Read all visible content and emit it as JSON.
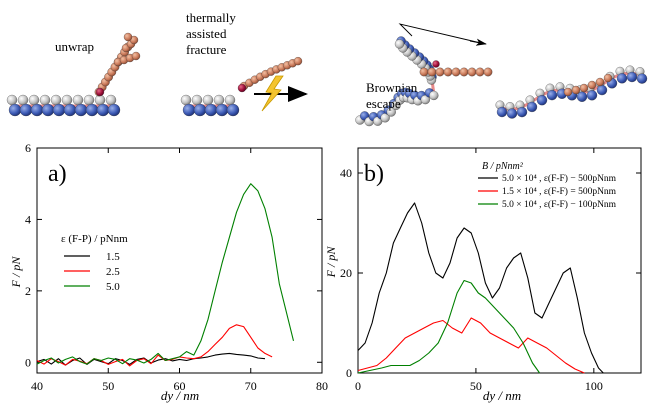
{
  "illustrations": {
    "labels": [
      "unwrap",
      "thermally",
      "assisted",
      "fracture",
      "Brownian",
      "escape"
    ]
  },
  "chart_data": [
    {
      "type": "line",
      "panel_label": "a)",
      "xlabel": "dy / nm",
      "ylabel": "F / pN",
      "xlim": [
        40,
        80
      ],
      "ylim": [
        -0.3,
        6
      ],
      "xticks": [
        40,
        50,
        60,
        70,
        80
      ],
      "yticks": [
        0,
        2,
        4,
        6
      ],
      "legend_title": "ε (F-P) / pNnm",
      "legend_position": "center-left",
      "series": [
        {
          "name": "1.5",
          "color": "#000000",
          "x": [
            40,
            41,
            42,
            43,
            44,
            45,
            46,
            47,
            48,
            49,
            50,
            51,
            52,
            53,
            54,
            55,
            56,
            57,
            58,
            59,
            60,
            61,
            62,
            63,
            64,
            65,
            66,
            67,
            68,
            69,
            70,
            71,
            72
          ],
          "y": [
            0.02,
            0.08,
            -0.05,
            0.1,
            -0.08,
            0.05,
            0.12,
            -0.06,
            0.08,
            0.02,
            -0.04,
            0.1,
            0.05,
            -0.06,
            0.08,
            0.12,
            -0.02,
            0.06,
            0.1,
            0.04,
            0.08,
            0.05,
            0.1,
            0.12,
            0.15,
            0.2,
            0.23,
            0.25,
            0.22,
            0.2,
            0.18,
            0.12,
            0.1
          ]
        },
        {
          "name": "2.5",
          "color": "#ff0000",
          "x": [
            40,
            41,
            42,
            43,
            44,
            45,
            46,
            47,
            48,
            49,
            50,
            51,
            52,
            53,
            54,
            55,
            56,
            57,
            58,
            59,
            60,
            61,
            62,
            63,
            64,
            65,
            66,
            67,
            68,
            69,
            70,
            71,
            72,
            73
          ],
          "y": [
            0.05,
            -0.05,
            0.1,
            0.02,
            -0.08,
            0.08,
            0.03,
            -0.04,
            0.1,
            0.05,
            -0.06,
            0.02,
            0.08,
            -0.1,
            0.05,
            0.1,
            -0.04,
            0.2,
            0.05,
            0.08,
            0.15,
            0.12,
            0.1,
            0.15,
            0.3,
            0.5,
            0.7,
            0.95,
            1.05,
            1.0,
            0.7,
            0.4,
            0.25,
            0.15
          ]
        },
        {
          "name": "5.0",
          "color": "#008000",
          "x": [
            40,
            41,
            42,
            43,
            44,
            45,
            46,
            47,
            48,
            49,
            50,
            51,
            52,
            53,
            54,
            55,
            56,
            57,
            58,
            59,
            60,
            61,
            62,
            63,
            64,
            65,
            66,
            67,
            68,
            69,
            70,
            71,
            72,
            73,
            74,
            75,
            76
          ],
          "y": [
            -0.05,
            0.05,
            0.12,
            -0.02,
            0.08,
            0.15,
            0.02,
            -0.05,
            0.1,
            0.05,
            0.12,
            0.08,
            -0.04,
            0.1,
            0.06,
            -0.02,
            0.08,
            0.25,
            0.05,
            0.1,
            0.15,
            0.3,
            0.2,
            0.6,
            1.2,
            2.0,
            2.8,
            3.5,
            4.2,
            4.7,
            5.0,
            4.8,
            4.3,
            3.5,
            2.2,
            1.4,
            0.6
          ]
        }
      ]
    },
    {
      "type": "line",
      "panel_label": "b)",
      "xlabel": "dy / nm",
      "ylabel": "F / pN",
      "xlim": [
        0,
        120
      ],
      "ylim": [
        0,
        45
      ],
      "xticks": [
        0,
        50,
        100
      ],
      "yticks": [
        0,
        20,
        40
      ],
      "legend_title": "B / pNnm²",
      "legend_position": "top-right",
      "series": [
        {
          "name": "5.0 × 10⁴ , ε(F-F) − 500pNnm",
          "color": "#000000",
          "x": [
            0,
            3,
            6,
            9,
            12,
            15,
            18,
            21,
            24,
            27,
            30,
            33,
            36,
            39,
            42,
            45,
            48,
            51,
            54,
            57,
            60,
            63,
            66,
            69,
            72,
            75,
            78,
            81,
            84,
            87,
            90,
            93,
            96,
            99,
            102,
            104
          ],
          "y": [
            4.5,
            6,
            10,
            16,
            20,
            26,
            29,
            32,
            34,
            30,
            24,
            20,
            19,
            22,
            27,
            29,
            28,
            24,
            18,
            15,
            17,
            21,
            23,
            24,
            19,
            12,
            11,
            14,
            17,
            20,
            21,
            15,
            8,
            4,
            1,
            0
          ]
        },
        {
          "name": "1.5 × 10⁴ , ε(F-F) = 500pNnm",
          "color": "#ff0000",
          "x": [
            0,
            4,
            8,
            12,
            16,
            20,
            24,
            28,
            32,
            36,
            40,
            44,
            48,
            52,
            56,
            60,
            64,
            68,
            72,
            76,
            80,
            84,
            88,
            92,
            96
          ],
          "y": [
            0.5,
            1,
            1.5,
            3,
            5,
            7,
            8,
            9,
            10,
            10.5,
            9,
            8,
            11,
            10,
            8,
            7,
            6,
            5,
            7,
            6,
            5,
            3.5,
            2,
            0.8,
            0
          ]
        },
        {
          "name": "5.0 × 10⁴ , ε(F-F) − 100pNnm",
          "color": "#008000",
          "x": [
            0,
            5,
            10,
            14,
            18,
            22,
            26,
            30,
            34,
            38,
            42,
            45,
            48,
            51,
            54,
            58,
            62,
            66,
            70,
            74,
            77
          ],
          "y": [
            0,
            0.5,
            1,
            1.5,
            1.5,
            1.5,
            2.5,
            4,
            6,
            10,
            16,
            18.5,
            18,
            16,
            15,
            13,
            11,
            9,
            6,
            2,
            0
          ]
        }
      ]
    }
  ]
}
